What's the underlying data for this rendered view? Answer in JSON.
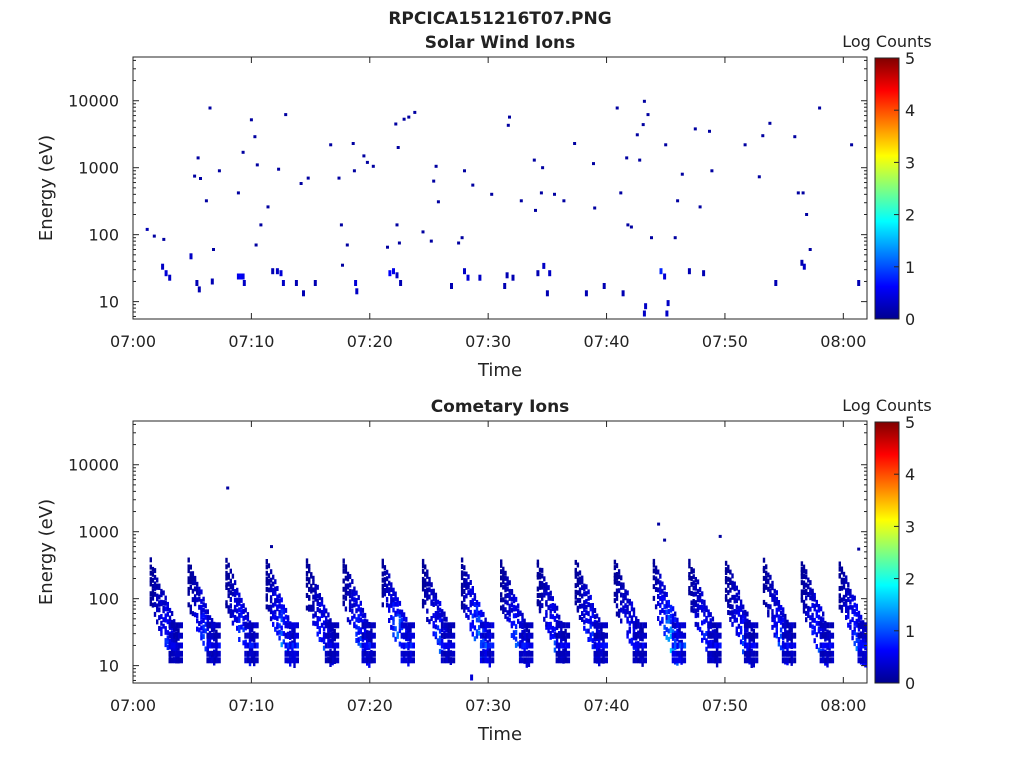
{
  "figure_title": "RPCICA151216T07.PNG",
  "chart_data": [
    {
      "type": "heatmap",
      "title": "Solar Wind Ions",
      "xlabel": "Time",
      "ylabel": "Energy (eV)",
      "x_ticks": [
        "07:00",
        "07:10",
        "07:20",
        "07:30",
        "07:40",
        "07:50",
        "08:00"
      ],
      "x_range_minutes": [
        0,
        62
      ],
      "y_scale": "log",
      "y_ticks": [
        10,
        100,
        1000,
        10000
      ],
      "y_tick_labels": [
        "10",
        "100",
        "1000",
        "10000"
      ],
      "y_range": [
        5.5,
        45000
      ],
      "colorbar": {
        "label": "Log Counts",
        "range": [
          0,
          5
        ],
        "ticks": [
          "0",
          "1",
          "2",
          "3",
          "4",
          "5"
        ],
        "colormap": "jet"
      },
      "points": [
        [
          1.2,
          120,
          0.2
        ],
        [
          1.8,
          95,
          0.1
        ],
        [
          2.6,
          85,
          0.1
        ],
        [
          2.5,
          35,
          0.3
        ],
        [
          2.8,
          28,
          0.4
        ],
        [
          3.1,
          24,
          0.3
        ],
        [
          4.9,
          50,
          0.3
        ],
        [
          5.4,
          20,
          0.2
        ],
        [
          5.6,
          16,
          0.2
        ],
        [
          5.2,
          750,
          0.1
        ],
        [
          5.5,
          1400,
          0.1
        ],
        [
          5.7,
          690,
          0.1
        ],
        [
          6.2,
          320,
          0.1
        ],
        [
          6.5,
          7800,
          0.1
        ],
        [
          6.7,
          21,
          0.2
        ],
        [
          6.8,
          60,
          0.1
        ],
        [
          7.3,
          900,
          0.1
        ],
        [
          8.9,
          25,
          0.5
        ],
        [
          9.1,
          25,
          0.6
        ],
        [
          9.3,
          25,
          0.5
        ],
        [
          9.4,
          20,
          0.3
        ],
        [
          8.9,
          420,
          0.1
        ],
        [
          9.3,
          1700,
          0.1
        ],
        [
          10.0,
          5200,
          0.1
        ],
        [
          10.3,
          2900,
          0.1
        ],
        [
          10.5,
          1100,
          0.1
        ],
        [
          10.4,
          70,
          0.1
        ],
        [
          10.8,
          140,
          0.1
        ],
        [
          11.4,
          260,
          0.1
        ],
        [
          11.8,
          30,
          0.2
        ],
        [
          12.2,
          30,
          0.3
        ],
        [
          12.5,
          28,
          0.4
        ],
        [
          12.7,
          20,
          0.3
        ],
        [
          12.3,
          950,
          0.1
        ],
        [
          12.9,
          6200,
          0.1
        ],
        [
          13.8,
          20,
          0.2
        ],
        [
          14.2,
          580,
          0.1
        ],
        [
          14.4,
          14,
          0.2
        ],
        [
          14.8,
          700,
          0.1
        ],
        [
          15.4,
          20,
          0.2
        ],
        [
          16.7,
          2200,
          0.1
        ],
        [
          17.4,
          700,
          0.1
        ],
        [
          17.7,
          35,
          0.1
        ],
        [
          17.6,
          140,
          0.1
        ],
        [
          18.1,
          70,
          0.1
        ],
        [
          18.6,
          2300,
          0.1
        ],
        [
          18.7,
          900,
          0.1
        ],
        [
          18.8,
          20,
          0.4
        ],
        [
          18.9,
          15,
          0.3
        ],
        [
          19.5,
          1500,
          0.1
        ],
        [
          19.8,
          1200,
          0.1
        ],
        [
          20.3,
          1050,
          0.1
        ],
        [
          21.5,
          65,
          0.1
        ],
        [
          21.7,
          28,
          0.6
        ],
        [
          22.0,
          30,
          0.5
        ],
        [
          22.3,
          26,
          0.3
        ],
        [
          22.6,
          20,
          0.2
        ],
        [
          22.2,
          4500,
          0.1
        ],
        [
          22.3,
          140,
          0.1
        ],
        [
          22.4,
          2000,
          0.1
        ],
        [
          22.5,
          75,
          0.1
        ],
        [
          22.9,
          5300,
          0.1
        ],
        [
          23.3,
          5700,
          0.1
        ],
        [
          23.8,
          6700,
          0.1
        ],
        [
          24.5,
          110,
          0.1
        ],
        [
          25.2,
          80,
          0.1
        ],
        [
          25.4,
          630,
          0.1
        ],
        [
          25.6,
          1050,
          0.1
        ],
        [
          25.8,
          310,
          0.1
        ],
        [
          26.9,
          18,
          0.2
        ],
        [
          27.5,
          75,
          0.1
        ],
        [
          27.8,
          90,
          0.1
        ],
        [
          28.0,
          30,
          0.3
        ],
        [
          28.3,
          24,
          0.4
        ],
        [
          28.0,
          900,
          0.1
        ],
        [
          28.7,
          550,
          0.1
        ],
        [
          29.3,
          24,
          0.3
        ],
        [
          30.3,
          400,
          0.1
        ],
        [
          31.4,
          18,
          0.2
        ],
        [
          31.6,
          26,
          0.2
        ],
        [
          31.8,
          5700,
          0.1
        ],
        [
          31.7,
          4300,
          0.1
        ],
        [
          32.1,
          24,
          0.2
        ],
        [
          32.8,
          320,
          0.1
        ],
        [
          33.9,
          1300,
          0.1
        ],
        [
          34.0,
          230,
          0.1
        ],
        [
          34.2,
          28,
          0.2
        ],
        [
          34.5,
          420,
          0.1
        ],
        [
          34.7,
          36,
          0.3
        ],
        [
          34.6,
          1000,
          0.1
        ],
        [
          35.2,
          28,
          0.3
        ],
        [
          35.0,
          14,
          0.2
        ],
        [
          35.6,
          400,
          0.1
        ],
        [
          36.4,
          320,
          0.1
        ],
        [
          37.3,
          2300,
          0.1
        ],
        [
          38.3,
          14,
          0.2
        ],
        [
          38.9,
          1150,
          0.1
        ],
        [
          39.0,
          250,
          0.1
        ],
        [
          39.8,
          18,
          0.2
        ],
        [
          40.9,
          7800,
          0.1
        ],
        [
          41.2,
          420,
          0.1
        ],
        [
          41.4,
          14,
          0.2
        ],
        [
          41.8,
          140,
          0.1
        ],
        [
          41.7,
          1400,
          0.1
        ],
        [
          42.1,
          130,
          0.1
        ],
        [
          42.6,
          3100,
          0.1
        ],
        [
          42.8,
          1300,
          0.1
        ],
        [
          43.1,
          4400,
          0.1
        ],
        [
          43.2,
          9800,
          0.1
        ],
        [
          43.5,
          6200,
          0.1
        ],
        [
          43.3,
          9,
          0.3
        ],
        [
          43.2,
          7,
          0.3
        ],
        [
          43.8,
          90,
          0.1
        ],
        [
          44.6,
          30,
          0.8
        ],
        [
          44.9,
          25,
          0.4
        ],
        [
          45.2,
          10,
          0.3
        ],
        [
          45.1,
          7,
          0.3
        ],
        [
          45.0,
          2200,
          0.1
        ],
        [
          45.8,
          90,
          0.1
        ],
        [
          46.0,
          320,
          0.1
        ],
        [
          46.4,
          800,
          0.1
        ],
        [
          47.0,
          30,
          0.2
        ],
        [
          47.5,
          3800,
          0.1
        ],
        [
          47.9,
          260,
          0.1
        ],
        [
          48.2,
          28,
          0.2
        ],
        [
          48.7,
          3500,
          0.1
        ],
        [
          48.9,
          900,
          0.1
        ],
        [
          51.7,
          2200,
          0.1
        ],
        [
          52.9,
          730,
          0.1
        ],
        [
          53.2,
          3000,
          0.1
        ],
        [
          53.8,
          4600,
          0.1
        ],
        [
          54.3,
          20,
          0.2
        ],
        [
          55.9,
          2900,
          0.1
        ],
        [
          56.2,
          420,
          0.1
        ],
        [
          56.5,
          40,
          0.2
        ],
        [
          56.7,
          35,
          0.3
        ],
        [
          56.9,
          200,
          0.1
        ],
        [
          56.6,
          420,
          0.1
        ],
        [
          57.2,
          60,
          0.1
        ],
        [
          58.0,
          7800,
          0.1
        ],
        [
          60.7,
          2200,
          0.1
        ],
        [
          61.3,
          20,
          0.2
        ]
      ]
    },
    {
      "type": "heatmap",
      "title": "Cometary Ions",
      "xlabel": "Time",
      "ylabel": "Energy (eV)",
      "x_ticks": [
        "07:00",
        "07:10",
        "07:20",
        "07:30",
        "07:40",
        "07:50",
        "08:00"
      ],
      "x_range_minutes": [
        0,
        62
      ],
      "y_scale": "log",
      "y_ticks": [
        10,
        100,
        1000,
        10000
      ],
      "y_tick_labels": [
        "10",
        "100",
        "1000",
        "10000"
      ],
      "y_range": [
        5.5,
        45000
      ],
      "colorbar": {
        "label": "Log Counts",
        "range": [
          0,
          5
        ],
        "ticks": [
          "0",
          "1",
          "2",
          "3",
          "4",
          "5"
        ],
        "colormap": "jet"
      },
      "bursts_start_minutes": [
        1.4,
        4.6,
        7.8,
        11.2,
        14.6,
        17.7,
        21.0,
        24.4,
        27.7,
        31.0,
        34.1,
        37.3,
        40.6,
        43.9,
        46.9,
        50.0,
        53.2,
        56.4,
        59.6
      ],
      "bursts_peak_log_counts": [
        1.1,
        1.2,
        1.3,
        1.6,
        1.1,
        1.3,
        1.7,
        1.2,
        1.8,
        1.3,
        1.1,
        1.2,
        1.1,
        1.9,
        1.2,
        1.1,
        1.2,
        1.2,
        1.3
      ],
      "points": [
        [
          8.0,
          4500,
          0.1
        ],
        [
          11.7,
          600,
          0.1
        ],
        [
          44.4,
          1300,
          0.1
        ],
        [
          44.9,
          750,
          0.1
        ],
        [
          49.6,
          850,
          0.1
        ],
        [
          61.3,
          550,
          0.1
        ],
        [
          28.6,
          7,
          0.4
        ]
      ]
    }
  ]
}
